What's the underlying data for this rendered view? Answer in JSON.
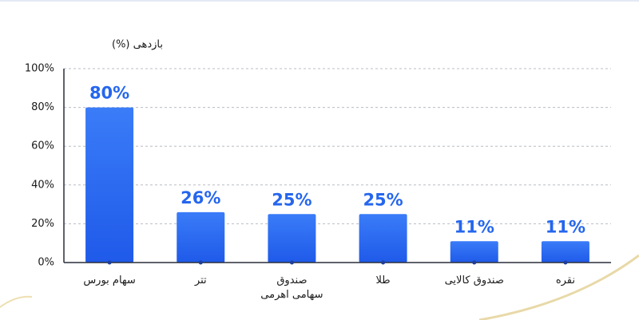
{
  "chart_data": {
    "type": "bar",
    "y_label": "بازدهی (%)",
    "categories": [
      "سهام بورس",
      "تتر",
      "صندوق سهامی اهرمی",
      "طلا",
      "صندوق کالایی",
      "نقره"
    ],
    "values": [
      80,
      26,
      25,
      25,
      11,
      11
    ],
    "value_labels": [
      "80%",
      "26%",
      "25%",
      "25%",
      "11%",
      "11%"
    ],
    "color": "#2566ee",
    "ylim": [
      0,
      100
    ],
    "yticks": [
      {
        "value": 0,
        "label": "0%"
      },
      {
        "value": 20,
        "label": "20%"
      },
      {
        "value": 40,
        "label": "40%"
      },
      {
        "value": 60,
        "label": "60%"
      },
      {
        "value": 80,
        "label": "80%"
      },
      {
        "value": 100,
        "label": "100%"
      }
    ],
    "grid": true
  }
}
